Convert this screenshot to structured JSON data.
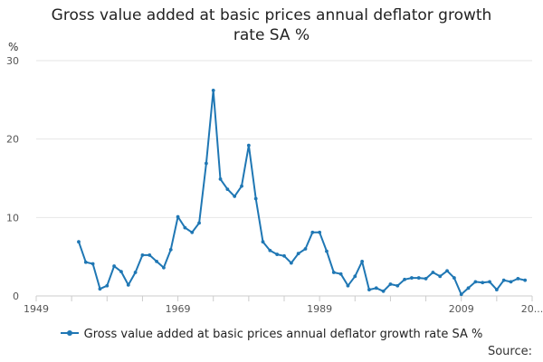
{
  "chart_data": {
    "type": "line",
    "title_lines": [
      "Gross value added at basic prices annual deflator growth",
      "rate SA %"
    ],
    "ylabel": "%",
    "xlabel": "",
    "ylim": [
      0,
      30
    ],
    "y_ticks": [
      0,
      10,
      20,
      30
    ],
    "x_tick_labels": [
      "1949",
      "1969",
      "1989",
      "2009",
      "20..."
    ],
    "x_tick_years": [
      1949,
      1969,
      1989,
      2009,
      2019
    ],
    "xlim": [
      1949,
      2019
    ],
    "grid": true,
    "legend_position": "bottom",
    "series": [
      {
        "name": "Gross value added at basic prices annual deflator growth rate SA %",
        "color": "#1f77b4",
        "x": [
          1955,
          1956,
          1957,
          1958,
          1959,
          1960,
          1961,
          1962,
          1963,
          1964,
          1965,
          1966,
          1967,
          1968,
          1969,
          1970,
          1971,
          1972,
          1973,
          1974,
          1975,
          1976,
          1977,
          1978,
          1979,
          1980,
          1981,
          1982,
          1983,
          1984,
          1985,
          1986,
          1987,
          1988,
          1989,
          1990,
          1991,
          1992,
          1993,
          1994,
          1995,
          1996,
          1997,
          1998,
          1999,
          2000,
          2001,
          2002,
          2003,
          2004,
          2005,
          2006,
          2007,
          2008,
          2009,
          2010,
          2011,
          2012,
          2013,
          2014,
          2015,
          2016,
          2017,
          2018
        ],
        "y": [
          6.9,
          4.3,
          4.1,
          0.9,
          1.3,
          3.8,
          3.1,
          1.4,
          3.0,
          5.2,
          5.2,
          4.4,
          3.6,
          5.9,
          10.1,
          8.7,
          8.1,
          9.3,
          16.9,
          26.2,
          14.9,
          13.6,
          12.7,
          14.0,
          19.2,
          12.4,
          6.9,
          5.8,
          5.3,
          5.1,
          4.2,
          5.4,
          6.0,
          8.1,
          8.1,
          5.7,
          3.0,
          2.8,
          1.3,
          2.5,
          4.4,
          0.8,
          1.0,
          0.6,
          1.5,
          1.3,
          2.1,
          2.3,
          2.3,
          2.2,
          3.0,
          2.5,
          3.2,
          2.3,
          0.2,
          1.0,
          1.8,
          1.7,
          1.8,
          0.8,
          2.0,
          1.8,
          2.2,
          2.0
        ]
      }
    ]
  },
  "source_label": "Source:"
}
